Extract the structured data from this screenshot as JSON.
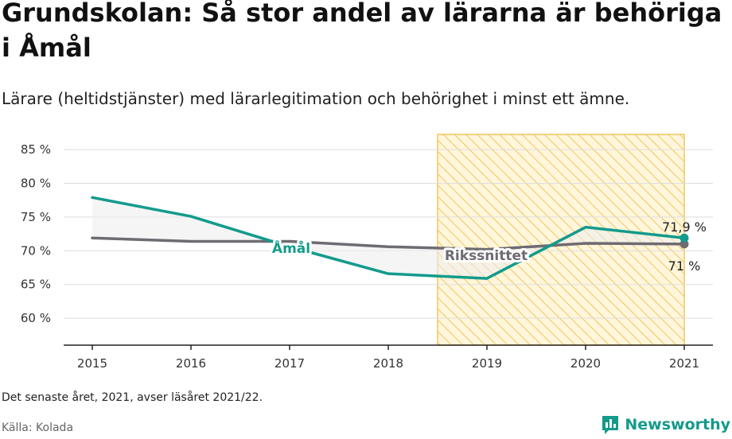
{
  "header": {
    "title": "Grundskolan: Så stor andel av lärarna är behöriga i Åmål",
    "subtitle": "Lärare (heltidstjänster) med lärarlegitimation och behörighet i minst ett ämne."
  },
  "footer": {
    "note": "Det senaste året, 2021, avser läsåret 2021/22.",
    "source": "Källa: Kolada",
    "brand": "Newsworthy",
    "brand_icon": "bar-chart-speech-bubble-icon"
  },
  "colors": {
    "amal": "#129b8c",
    "riket": "#6e6b72",
    "highlight_stroke": "#f3c55c",
    "highlight_fill": "#fff6dc",
    "grid": "#dddddd",
    "area_fill": "#ececef"
  },
  "chart_data": {
    "type": "line",
    "x": [
      "2015",
      "2016",
      "2017",
      "2018",
      "2019",
      "2020",
      "2021"
    ],
    "y_ticks": [
      "60 %",
      "65 %",
      "70 %",
      "75 %",
      "80 %",
      "85 %"
    ],
    "y_tick_values": [
      60,
      65,
      70,
      75,
      80,
      85
    ],
    "ylim": [
      56,
      89.5
    ],
    "highlight_range": [
      "2018.5",
      "2021"
    ],
    "series": [
      {
        "name": "Åmål",
        "values": [
          77.9,
          75.1,
          70.6,
          66.6,
          65.9,
          73.5,
          71.9
        ]
      },
      {
        "name": "Rikssnittet",
        "values": [
          71.9,
          71.4,
          71.4,
          70.6,
          70.2,
          71.1,
          71.0
        ]
      }
    ],
    "end_labels": {
      "amal": "71,9 %",
      "riket": "71 %"
    }
  }
}
